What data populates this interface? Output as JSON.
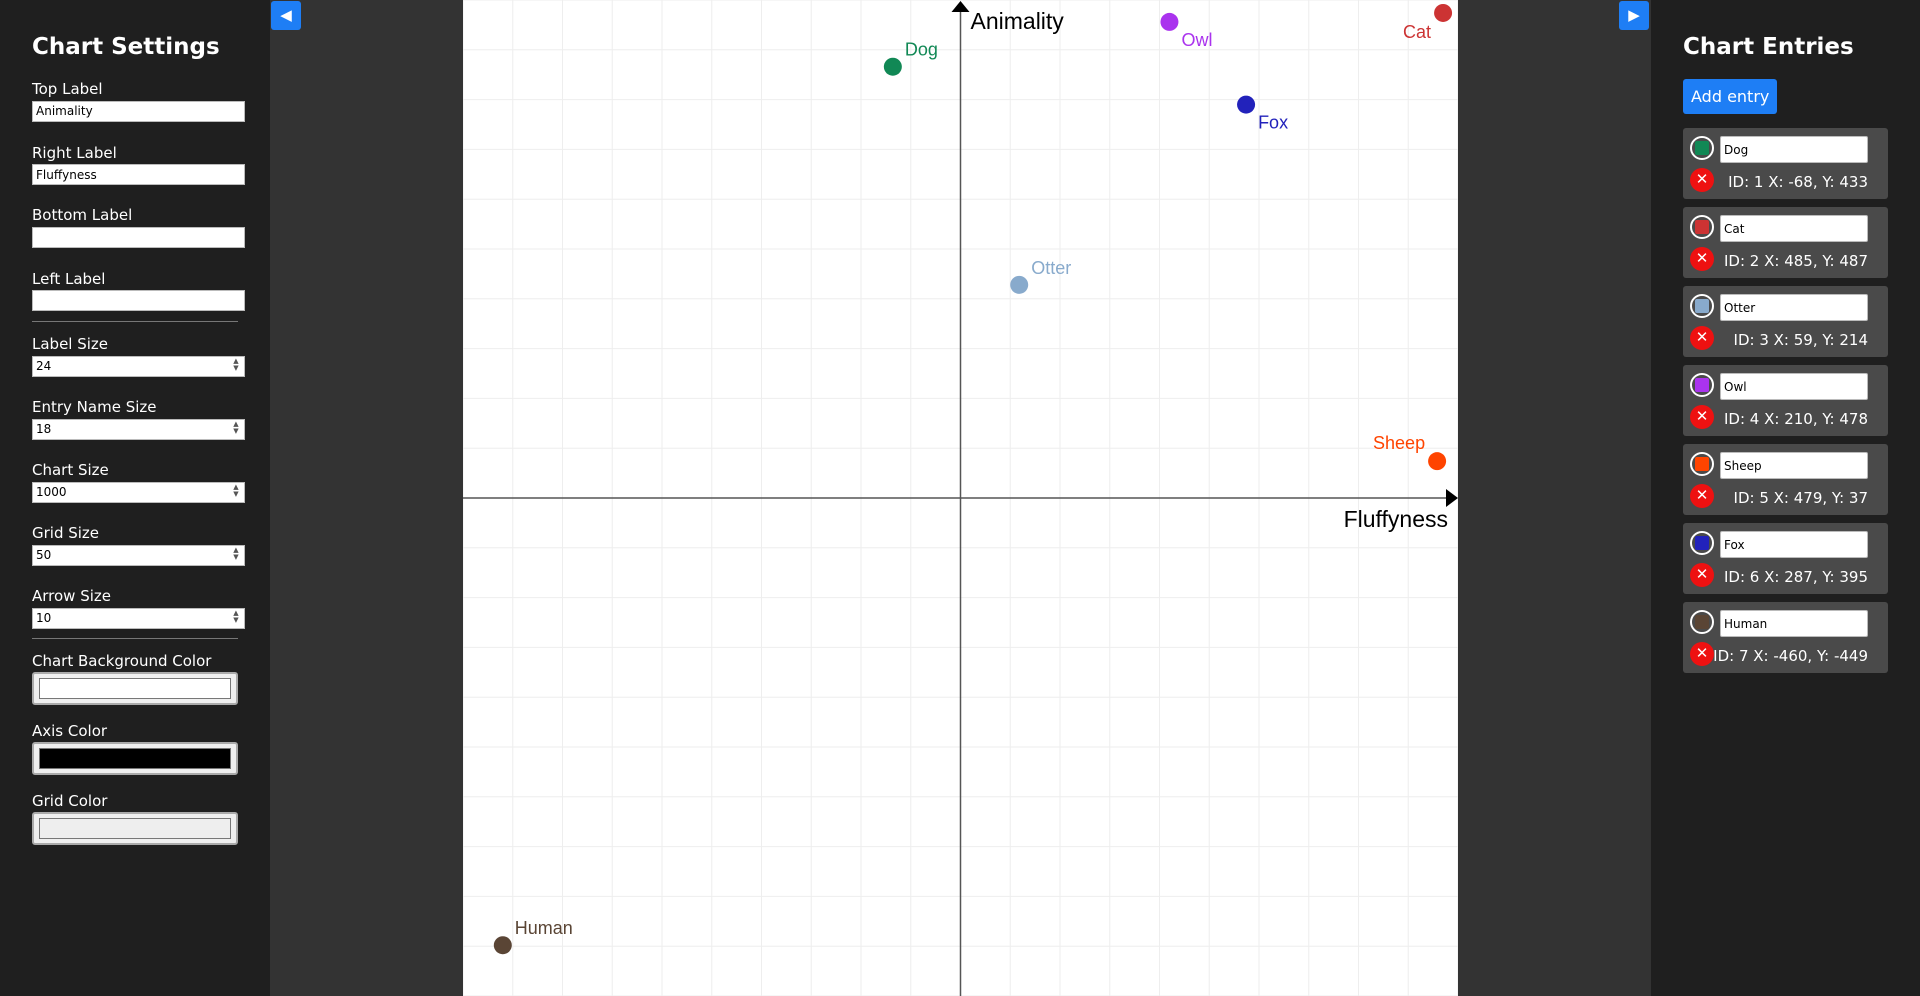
{
  "left_panel": {
    "title": "Chart Settings",
    "top_label": {
      "label": "Top Label",
      "value": "Animality"
    },
    "right_label": {
      "label": "Right Label",
      "value": "Fluffyness"
    },
    "bottom_label": {
      "label": "Bottom Label",
      "value": ""
    },
    "left_label": {
      "label": "Left Label",
      "value": ""
    },
    "label_size": {
      "label": "Label Size",
      "value": "24"
    },
    "entry_name_size": {
      "label": "Entry Name Size",
      "value": "18"
    },
    "chart_size": {
      "label": "Chart Size",
      "value": "1000"
    },
    "grid_size": {
      "label": "Grid Size",
      "value": "50"
    },
    "arrow_size": {
      "label": "Arrow Size",
      "value": "10"
    },
    "chart_bg_color": {
      "label": "Chart Background Color",
      "value": "#ffffff"
    },
    "axis_color": {
      "label": "Axis Color",
      "value": "#000000"
    },
    "grid_color": {
      "label": "Grid Color",
      "value": "#eeeeee"
    }
  },
  "toggles": {
    "left": "◀",
    "right": "▶"
  },
  "right_panel": {
    "title": "Chart Entries",
    "add_button": "Add entry",
    "entries": [
      {
        "id": 1,
        "name": "Dog",
        "color": "#118855",
        "x": -68,
        "y": 433,
        "info": "ID: 1 X: -68, Y: 433"
      },
      {
        "id": 2,
        "name": "Cat",
        "color": "#cc3333",
        "x": 485,
        "y": 487,
        "info": "ID: 2 X: 485, Y: 487"
      },
      {
        "id": 3,
        "name": "Otter",
        "color": "#88aacc",
        "x": 59,
        "y": 214,
        "info": "ID: 3 X: 59, Y: 214"
      },
      {
        "id": 4,
        "name": "Owl",
        "color": "#aa33ee",
        "x": 210,
        "y": 478,
        "info": "ID: 4 X: 210, Y: 478"
      },
      {
        "id": 5,
        "name": "Sheep",
        "color": "#ff4400",
        "x": 479,
        "y": 37,
        "info": "ID: 5 X: 479, Y: 37"
      },
      {
        "id": 6,
        "name": "Fox",
        "color": "#2222bb",
        "x": 287,
        "y": 395,
        "info": "ID: 6 X: 287, Y: 395"
      },
      {
        "id": 7,
        "name": "Human",
        "color": "#5a4535",
        "x": -460,
        "y": -449,
        "info": "ID: 7 X: -460, Y: -449"
      }
    ]
  },
  "chart_data": {
    "type": "scatter",
    "top_label": "Animality",
    "right_label": "Fluffyness",
    "bottom_label": "",
    "left_label": "",
    "xlim": [
      -500,
      500
    ],
    "ylim": [
      -500,
      500
    ],
    "grid_step": 50,
    "grid": true,
    "background_color": "#ffffff",
    "axis_color": "#000000",
    "grid_color": "#eeeeee",
    "points": [
      {
        "name": "Dog",
        "x": -68,
        "y": 433,
        "color": "#118855"
      },
      {
        "name": "Cat",
        "x": 485,
        "y": 487,
        "color": "#cc3333"
      },
      {
        "name": "Otter",
        "x": 59,
        "y": 214,
        "color": "#88aacc"
      },
      {
        "name": "Owl",
        "x": 210,
        "y": 478,
        "color": "#aa33ee"
      },
      {
        "name": "Sheep",
        "x": 479,
        "y": 37,
        "color": "#ff4400"
      },
      {
        "name": "Fox",
        "x": 287,
        "y": 395,
        "color": "#2222bb"
      },
      {
        "name": "Human",
        "x": -460,
        "y": -449,
        "color": "#5a4535"
      }
    ]
  }
}
